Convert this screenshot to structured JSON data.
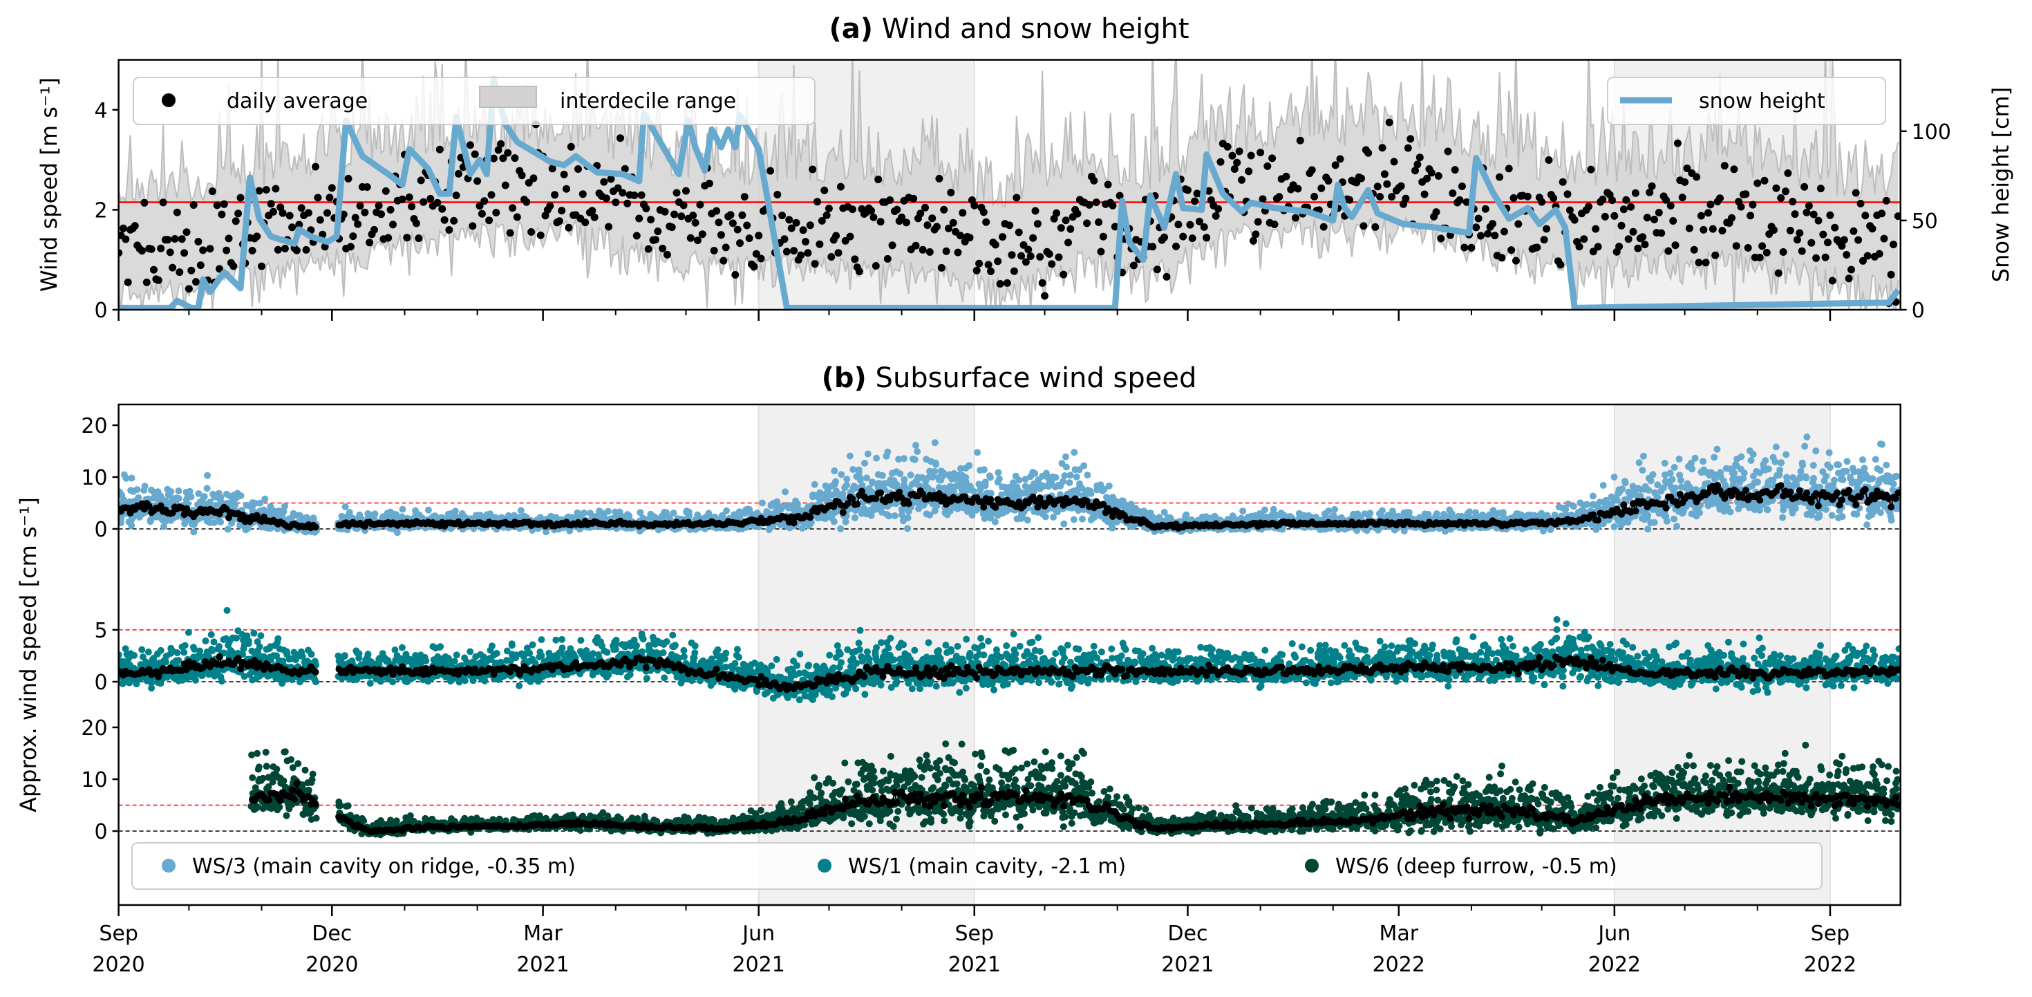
{
  "chart_data": {
    "type": "scatter",
    "xlim": [
      "2020-09-01",
      "2022-10-01"
    ],
    "xticks": [
      {
        "date": "2020-09-01",
        "month": "Sep",
        "year": "2020"
      },
      {
        "date": "2020-12-01",
        "month": "Dec",
        "year": "2020"
      },
      {
        "date": "2021-03-01",
        "month": "Mar",
        "year": "2021"
      },
      {
        "date": "2021-06-01",
        "month": "Jun",
        "year": "2021"
      },
      {
        "date": "2021-09-01",
        "month": "Sep",
        "year": "2021"
      },
      {
        "date": "2021-12-01",
        "month": "Dec",
        "year": "2021"
      },
      {
        "date": "2022-03-01",
        "month": "Mar",
        "year": "2022"
      },
      {
        "date": "2022-06-01",
        "month": "Jun",
        "year": "2022"
      },
      {
        "date": "2022-09-01",
        "month": "Sep",
        "year": "2022"
      }
    ],
    "shaded_periods": [
      [
        "2021-06-01",
        "2021-09-01"
      ],
      [
        "2022-06-01",
        "2022-09-01"
      ]
    ],
    "months": [
      "2020-09",
      "2020-10",
      "2020-11",
      "2020-12",
      "2021-01",
      "2021-02",
      "2021-03",
      "2021-04",
      "2021-05",
      "2021-06",
      "2021-07",
      "2021-08",
      "2021-09",
      "2021-10",
      "2021-11",
      "2021-12",
      "2022-01",
      "2022-02",
      "2022-03",
      "2022-04",
      "2022-05",
      "2022-06",
      "2022-07",
      "2022-08",
      "2022-09"
    ],
    "panel_a": {
      "title_bold": "(a)",
      "title": "Wind and snow height",
      "ylabel_left": "Wind speed [m s⁻¹]",
      "ylabel_right": "Snow height [cm]",
      "ylim_left": [
        0,
        5
      ],
      "ylim_right": [
        0,
        140
      ],
      "yticks_left": [
        0,
        2,
        4
      ],
      "yticks_right": [
        0,
        50,
        100
      ],
      "reference_line": 2.15,
      "reference_color": "#ff0000",
      "legend": {
        "daily_average": "daily average",
        "interdecile_range": "interdecile range",
        "snow_height": "snow height"
      },
      "legend_placement": [
        "upper-left",
        "upper-right"
      ],
      "daily_average_monthly_mean": [
        1.2,
        1.4,
        1.7,
        2.0,
        2.3,
        2.4,
        2.4,
        1.9,
        1.7,
        1.7,
        1.6,
        1.6,
        1.2,
        1.8,
        1.5,
        2.3,
        2.4,
        2.5,
        2.4,
        1.9,
        1.6,
        1.8,
        1.9,
        1.7,
        1.3
      ],
      "snow_color": "#67a9cf",
      "snow_height": {
        "dates": [
          "2020-09-01",
          "2020-09-23",
          "2020-09-26",
          "2020-10-02",
          "2020-10-05",
          "2020-10-07",
          "2020-10-10",
          "2020-10-16",
          "2020-10-23",
          "2020-10-27",
          "2020-10-31",
          "2020-11-05",
          "2020-11-15",
          "2020-11-17",
          "2020-11-22",
          "2020-11-29",
          "2020-12-03",
          "2020-12-07",
          "2020-12-14",
          "2020-12-25",
          "2020-12-31",
          "2021-01-03",
          "2021-01-11",
          "2021-01-16",
          "2021-01-20",
          "2021-01-23",
          "2021-01-29",
          "2021-02-02",
          "2021-02-05",
          "2021-02-08",
          "2021-02-13",
          "2021-02-18",
          "2021-03-04",
          "2021-03-10",
          "2021-03-15",
          "2021-03-24",
          "2021-04-04",
          "2021-04-11",
          "2021-04-13",
          "2021-04-20",
          "2021-04-28",
          "2021-05-02",
          "2021-05-05",
          "2021-05-09",
          "2021-05-12",
          "2021-05-16",
          "2021-05-19",
          "2021-05-22",
          "2021-05-24",
          "2021-06-01",
          "2021-06-13",
          "2021-10-31",
          "2021-11-03",
          "2021-11-06",
          "2021-11-12",
          "2021-11-15",
          "2021-11-21",
          "2021-11-26",
          "2021-11-29",
          "2021-12-07",
          "2021-12-09",
          "2021-12-16",
          "2021-12-24",
          "2021-12-28",
          "2022-01-07",
          "2022-01-21",
          "2022-02-01",
          "2022-02-03",
          "2022-02-06",
          "2022-02-09",
          "2022-02-16",
          "2022-02-20",
          "2022-03-03",
          "2022-03-17",
          "2022-03-31",
          "2022-04-03",
          "2022-04-10",
          "2022-04-17",
          "2022-04-25",
          "2022-04-30",
          "2022-05-07",
          "2022-05-11",
          "2022-05-15",
          "2022-09-26",
          "2022-09-30"
        ],
        "values": [
          1,
          1,
          5,
          1,
          1,
          17,
          10,
          21,
          12,
          74,
          51,
          41,
          37,
          45,
          41,
          38,
          41,
          106,
          86,
          76,
          70,
          90,
          79,
          65,
          65,
          108,
          76,
          84,
          76,
          129,
          104,
          94,
          83,
          81,
          86,
          77,
          76,
          72,
          110,
          94,
          76,
          106,
          91,
          78,
          101,
          91,
          101,
          91,
          109,
          90,
          1,
          1,
          61,
          38,
          28,
          64,
          46,
          76,
          57,
          56,
          87,
          65,
          55,
          60,
          57,
          55,
          50,
          70,
          57,
          52,
          67,
          54,
          48,
          46,
          43,
          85,
          66,
          51,
          57,
          48,
          56,
          46,
          1,
          4,
          11
        ]
      }
    },
    "panel_b": {
      "title_bold": "(b)",
      "title": "Subsurface wind speed",
      "ylabel": "Approx. wind speed [cm s⁻¹]",
      "threshold": 5,
      "threshold_color": "#ff0000",
      "data_gap": [
        "2020-11-25",
        "2020-12-03"
      ],
      "series": [
        {
          "name": "WS/3 (main cavity on ridge, -0.35 m)",
          "color": "#67a9cf",
          "yticks": [
            0,
            10,
            20
          ],
          "monthly_median": [
            4,
            3,
            0.5,
            1,
            1,
            1,
            1,
            1,
            1,
            2,
            6,
            6,
            5,
            5.5,
            0.5,
            0.8,
            1,
            1,
            1,
            1,
            1.5,
            5,
            7,
            6.5,
            6
          ],
          "monthly_spread": [
            2,
            2,
            0.8,
            0.8,
            0.8,
            0.8,
            0.8,
            0.8,
            0.8,
            1.5,
            3,
            3,
            2.5,
            2.5,
            0.8,
            0.8,
            0.8,
            0.8,
            0.8,
            0.8,
            1,
            3,
            3,
            3,
            3
          ]
        },
        {
          "name": "WS/1 (main cavity, -2.1 m)",
          "color": "#02818a",
          "yticks": [
            0,
            5
          ],
          "monthly_median": [
            0.8,
            2,
            1,
            1,
            1,
            1.2,
            1.5,
            2,
            0.5,
            -0.5,
            0.8,
            0.8,
            1,
            1,
            1,
            1,
            1,
            1.2,
            1.5,
            1.3,
            2,
            0.8,
            0.8,
            0.8,
            1
          ],
          "monthly_spread": [
            0.8,
            1.2,
            0.8,
            0.8,
            0.8,
            0.8,
            0.8,
            0.9,
            0.8,
            0.9,
            1.1,
            1.1,
            1,
            0.9,
            0.8,
            0.8,
            0.8,
            0.8,
            0.9,
            0.9,
            1.3,
            0.9,
            0.9,
            0.9,
            0.9
          ]
        },
        {
          "name": "WS/6 (deep furrow, -0.5 m)",
          "color": "#014636",
          "yticks": [
            0,
            10,
            20
          ],
          "start": "2020-10-28",
          "monthly_median": [
            null,
            7,
            7,
            0,
            0.8,
            1,
            1.5,
            0.8,
            0.5,
            2,
            6,
            6,
            6.5,
            6,
            0.5,
            1.2,
            1.5,
            2,
            4,
            4,
            2,
            6,
            6.5,
            6.5,
            6
          ],
          "monthly_spread": [
            null,
            3,
            3,
            0.6,
            0.6,
            0.6,
            0.7,
            0.6,
            0.6,
            1.5,
            3,
            3.2,
            3,
            3,
            0.7,
            1,
            1.2,
            1.5,
            2.5,
            2.5,
            1.5,
            2.5,
            2.5,
            2.5,
            2.5
          ]
        }
      ],
      "legend_placement": "lower"
    }
  }
}
